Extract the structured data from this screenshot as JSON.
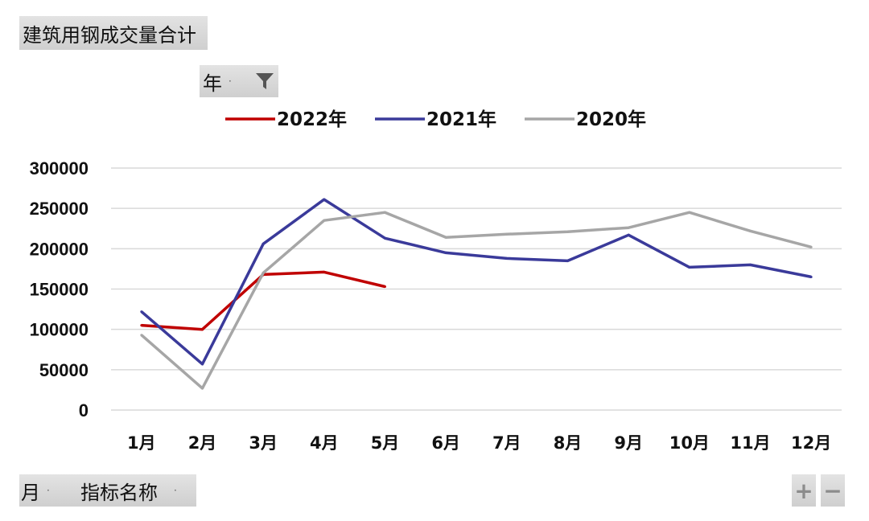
{
  "pivot": {
    "title_field": "建筑用钢成交量合计",
    "year_field": "年",
    "month_field": "月",
    "metric_field": "指标名称",
    "plus_label": "+",
    "minus_label": "−"
  },
  "chart_data": {
    "type": "line",
    "categories": [
      "1月",
      "2月",
      "3月",
      "4月",
      "5月",
      "6月",
      "7月",
      "8月",
      "9月",
      "10月",
      "11月",
      "12月"
    ],
    "ylim": [
      0,
      300000
    ],
    "yticks": [
      0,
      50000,
      100000,
      150000,
      200000,
      250000,
      300000
    ],
    "grid": true,
    "legend_position": "top",
    "series": [
      {
        "name": "2022年",
        "color": "#c00000",
        "values": [
          105000,
          100000,
          168000,
          171000,
          153000,
          null,
          null,
          null,
          null,
          null,
          null,
          null
        ]
      },
      {
        "name": "2021年",
        "color": "#3a3a9a",
        "values": [
          122000,
          57000,
          206000,
          261000,
          213000,
          195000,
          188000,
          185000,
          217000,
          177000,
          180000,
          165000
        ]
      },
      {
        "name": "2020年",
        "color": "#a6a6a6",
        "values": [
          93000,
          27000,
          170000,
          235000,
          245000,
          214000,
          218000,
          221000,
          226000,
          245000,
          222000,
          202000
        ]
      }
    ]
  }
}
